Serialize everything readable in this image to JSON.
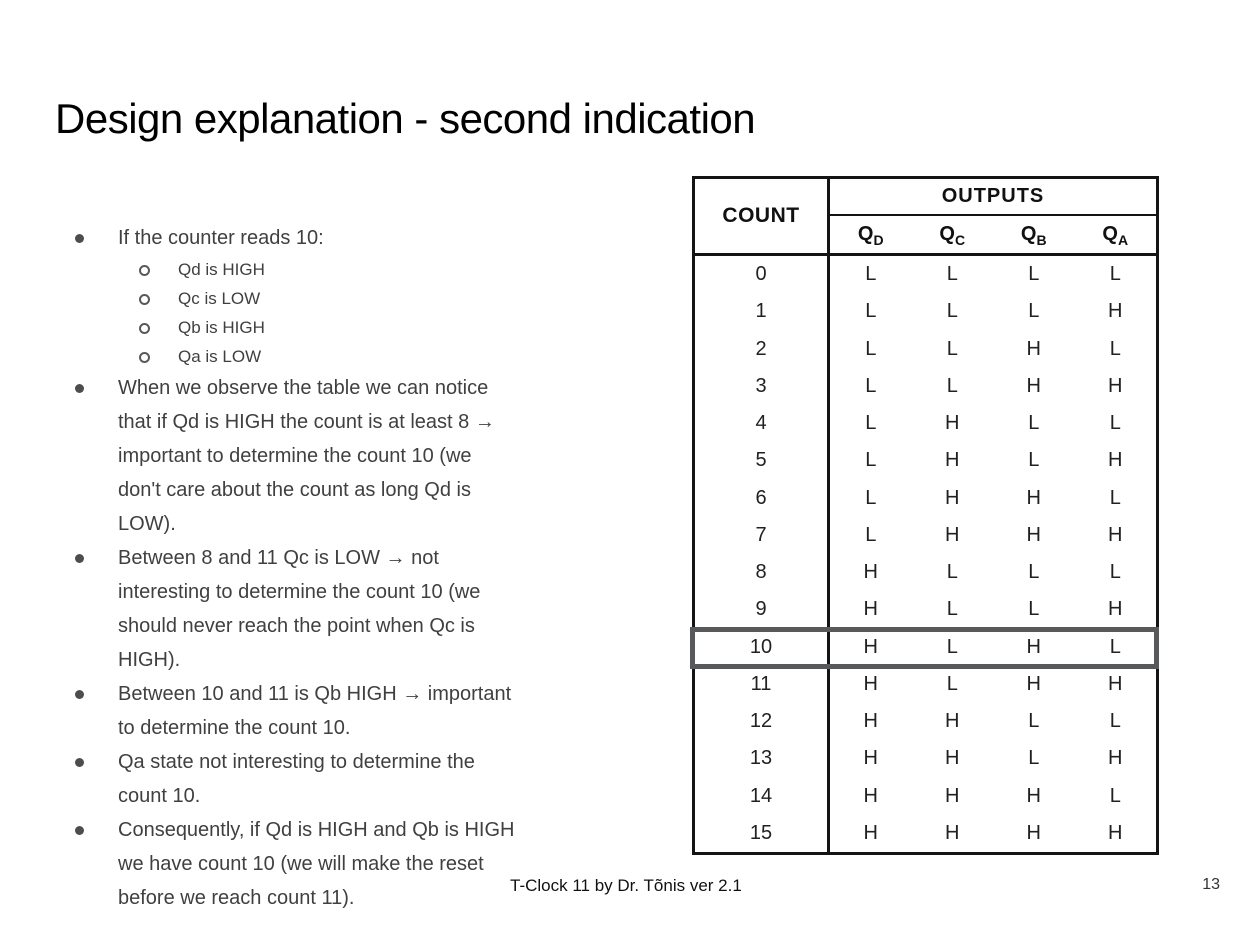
{
  "slide": {
    "title": "Design explanation - second indication",
    "footer_text": "T-Clock 11 by Dr. Tõnis ver 2.1",
    "page_number": "13"
  },
  "bullets": [
    {
      "level": 1,
      "lines": [
        "If the counter reads 10:"
      ]
    },
    {
      "level": 2,
      "lines": [
        "Qd is HIGH"
      ]
    },
    {
      "level": 2,
      "lines": [
        "Qc is LOW"
      ]
    },
    {
      "level": 2,
      "lines": [
        "Qb is HIGH"
      ]
    },
    {
      "level": 2,
      "lines": [
        "Qa is LOW"
      ]
    },
    {
      "level": 1,
      "lines": [
        "When we observe the table we can notice",
        "that if Qd is HIGH the count is at least 8 →",
        "important to determine the count 10 (we",
        "don't care about the count as long Qd is",
        "LOW)."
      ]
    },
    {
      "level": 1,
      "lines": [
        "Between 8 and 11 Qc is LOW → not",
        "interesting to determine the count 10 (we",
        "should never reach the point when Qc is",
        "HIGH)."
      ]
    },
    {
      "level": 1,
      "lines": [
        "Between 10 and 11 is Qb HIGH → important",
        "to determine the count 10."
      ]
    },
    {
      "level": 1,
      "lines": [
        "Qa state not interesting to determine the",
        "count 10."
      ]
    },
    {
      "level": 1,
      "lines": [
        "Consequently, if Qd is HIGH and Qb is HIGH",
        "we have count 10 (we will make the reset",
        "before we reach count 11)."
      ]
    }
  ],
  "table": {
    "count_header": "COUNT",
    "outputs_header": "OUTPUTS",
    "columns": [
      {
        "base": "Q",
        "sub": "D"
      },
      {
        "base": "Q",
        "sub": "C"
      },
      {
        "base": "Q",
        "sub": "B"
      },
      {
        "base": "Q",
        "sub": "A"
      }
    ],
    "rows": [
      {
        "count": "0",
        "values": [
          "L",
          "L",
          "L",
          "L"
        ]
      },
      {
        "count": "1",
        "values": [
          "L",
          "L",
          "L",
          "H"
        ]
      },
      {
        "count": "2",
        "values": [
          "L",
          "L",
          "H",
          "L"
        ]
      },
      {
        "count": "3",
        "values": [
          "L",
          "L",
          "H",
          "H"
        ]
      },
      {
        "count": "4",
        "values": [
          "L",
          "H",
          "L",
          "L"
        ]
      },
      {
        "count": "5",
        "values": [
          "L",
          "H",
          "L",
          "H"
        ]
      },
      {
        "count": "6",
        "values": [
          "L",
          "H",
          "H",
          "L"
        ]
      },
      {
        "count": "7",
        "values": [
          "L",
          "H",
          "H",
          "H"
        ]
      },
      {
        "count": "8",
        "values": [
          "H",
          "L",
          "L",
          "L"
        ]
      },
      {
        "count": "9",
        "values": [
          "H",
          "L",
          "L",
          "H"
        ]
      },
      {
        "count": "10",
        "values": [
          "H",
          "L",
          "H",
          "L"
        ]
      },
      {
        "count": "11",
        "values": [
          "H",
          "L",
          "H",
          "H"
        ]
      },
      {
        "count": "12",
        "values": [
          "H",
          "H",
          "L",
          "L"
        ]
      },
      {
        "count": "13",
        "values": [
          "H",
          "H",
          "L",
          "H"
        ]
      },
      {
        "count": "14",
        "values": [
          "H",
          "H",
          "H",
          "L"
        ]
      },
      {
        "count": "15",
        "values": [
          "H",
          "H",
          "H",
          "H"
        ]
      }
    ],
    "highlighted_count": "10"
  },
  "colors": {
    "highlight_border": "#58595b",
    "table_border": "#141414",
    "body_text": "#404040",
    "title_text": "#000000"
  }
}
